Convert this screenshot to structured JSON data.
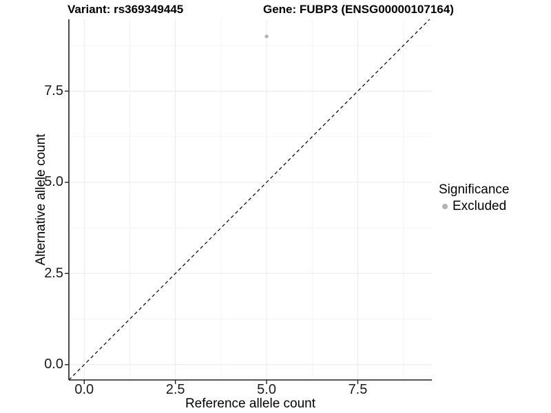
{
  "chart_data": {
    "type": "scatter",
    "title_left": "Variant: rs369349445",
    "title_right": "Gene: FUBP3 (ENSG00000107164)",
    "xlabel": "Reference allele count",
    "ylabel": "Alternative allele count",
    "xlim": [
      -0.42,
      9.53
    ],
    "ylim": [
      -0.42,
      9.47
    ],
    "x_ticks": [
      0.0,
      2.5,
      5.0,
      7.5
    ],
    "y_ticks": [
      0.0,
      2.5,
      5.0,
      7.5
    ],
    "x_tick_labels": [
      "0.0",
      "2.5",
      "5.0",
      "7.5"
    ],
    "y_tick_labels": [
      "0.0",
      "2.5",
      "5.0",
      "7.5"
    ],
    "x_minor_ticks": [
      1.25,
      3.75,
      6.25,
      8.75
    ],
    "y_minor_ticks": [
      1.25,
      3.75,
      6.25,
      8.75
    ],
    "grid": {
      "on": true,
      "major_color": "#eaeaea",
      "minor_color": "#f4f4f4"
    },
    "axis_color": "#1f1f1f",
    "reference_line": {
      "slope": 1,
      "intercept": 0,
      "style": "dashed",
      "color": "#111111"
    },
    "points": [
      {
        "x": 5,
        "y": 9,
        "significance": "Excluded"
      }
    ],
    "point_color": "#b3b3b3",
    "point_radius": 2.7,
    "legend": {
      "title": "Significance",
      "position": "right",
      "entries": [
        {
          "label": "Excluded",
          "color": "#b3b3b3"
        }
      ]
    }
  }
}
